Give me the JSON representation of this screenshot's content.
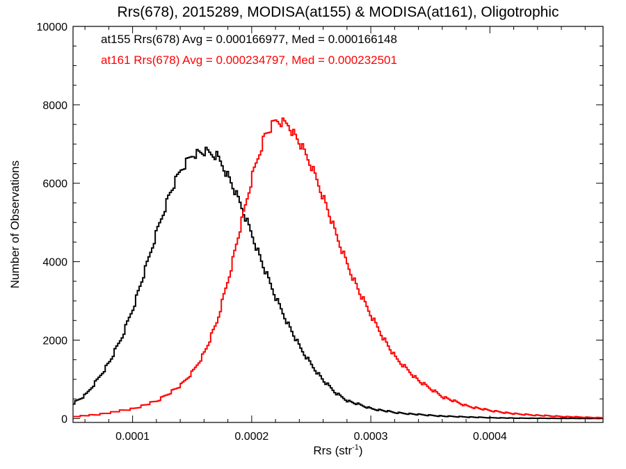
{
  "chart_data": {
    "type": "line",
    "title": "Rrs(678), 2015289, MODISA(at155) & MODISA(at161), Oligotrophic",
    "xlabel": "Rrs (str",
    "xlabel_sup": "-1",
    "xlabel_close": ")",
    "ylabel": "Number of Observations",
    "xlim": [
      5e-05,
      0.000495
    ],
    "ylim": [
      -100,
      10000
    ],
    "x_ticks": [
      {
        "value": 0.0001,
        "label": "0.0001"
      },
      {
        "value": 0.0002,
        "label": "0.0002"
      },
      {
        "value": 0.0003,
        "label": "0.0003"
      },
      {
        "value": 0.0004,
        "label": "0.0004"
      }
    ],
    "y_ticks": [
      {
        "value": 0,
        "label": "0"
      },
      {
        "value": 2000,
        "label": "2000"
      },
      {
        "value": 4000,
        "label": "4000"
      },
      {
        "value": 6000,
        "label": "6000"
      },
      {
        "value": 8000,
        "label": "8000"
      },
      {
        "value": 10000,
        "label": "10000"
      }
    ],
    "grid": false,
    "legend_position": "top-left",
    "series": [
      {
        "legend": "at155 Rrs(678) Avg = 0.000166977, Med = 0.000166148",
        "color": "#000000",
        "x": [
          5e-05,
          6e-05,
          7e-05,
          8e-05,
          9e-05,
          0.0001,
          0.00011,
          0.00012,
          0.00013,
          0.00014,
          0.00015,
          0.00016,
          0.00017,
          0.000175,
          0.00018,
          0.00019,
          0.0002,
          0.00021,
          0.00022,
          0.00023,
          0.00024,
          0.00025,
          0.00026,
          0.00027,
          0.00028,
          0.0003,
          0.00032,
          0.00034,
          0.00036,
          0.00038,
          0.0004,
          0.00042,
          0.00045,
          0.000495
        ],
        "values": [
          400,
          600,
          1000,
          1450,
          2050,
          2850,
          3800,
          4800,
          5700,
          6350,
          6750,
          6800,
          6700,
          6450,
          6150,
          5450,
          4650,
          3800,
          3050,
          2400,
          1800,
          1350,
          950,
          650,
          450,
          250,
          150,
          100,
          60,
          40,
          20,
          10,
          5,
          0
        ]
      },
      {
        "legend": "at161 Rrs(678) Avg = 0.000234797, Med = 0.000232501",
        "color": "#ff0000",
        "x": [
          5e-05,
          7e-05,
          9e-05,
          0.0001,
          0.00011,
          0.00012,
          0.00013,
          0.00014,
          0.00015,
          0.00016,
          0.00017,
          0.00018,
          0.00019,
          0.0002,
          0.00021,
          0.00022,
          0.00023,
          0.00024,
          0.00025,
          0.00026,
          0.00027,
          0.00028,
          0.00029,
          0.0003,
          0.00031,
          0.00032,
          0.00034,
          0.00036,
          0.00038,
          0.0004,
          0.00042,
          0.00044,
          0.00046,
          0.00048,
          0.000495
        ],
        "values": [
          50,
          100,
          200,
          250,
          350,
          450,
          650,
          850,
          1200,
          1700,
          2450,
          3600,
          4900,
          6200,
          7200,
          7600,
          7500,
          7000,
          6400,
          5600,
          4700,
          3900,
          3200,
          2600,
          2050,
          1550,
          950,
          550,
          320,
          200,
          120,
          80,
          50,
          30,
          20
        ]
      }
    ]
  }
}
